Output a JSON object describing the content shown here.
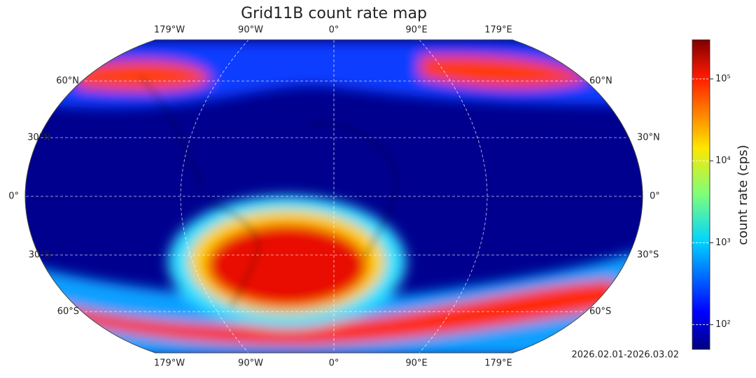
{
  "title": "Grid11B count rate map",
  "lon_labels_top": [
    "179°W",
    "90°W",
    "0°",
    "90°E",
    "179°E"
  ],
  "lon_labels_bottom": [
    "179°W",
    "90°W",
    "0°",
    "90°E",
    "179°E"
  ],
  "lat_labels_left": [
    "60°N",
    "30°N",
    "0°",
    "30°S",
    "60°S"
  ],
  "lat_labels_right": [
    "60°N",
    "30°N",
    "0°",
    "30°S",
    "60°S"
  ],
  "colorbar": {
    "label": "count rate (cps)",
    "log": true,
    "lim": [
      50,
      300000
    ],
    "ticks": [
      {
        "value": 100,
        "label": "10²"
      },
      {
        "value": 1000,
        "label": "10³"
      },
      {
        "value": 10000,
        "label": "10⁴"
      },
      {
        "value": 100000,
        "label": "10⁵"
      }
    ]
  },
  "date_range": "2026.02.01-2026.03.02"
}
